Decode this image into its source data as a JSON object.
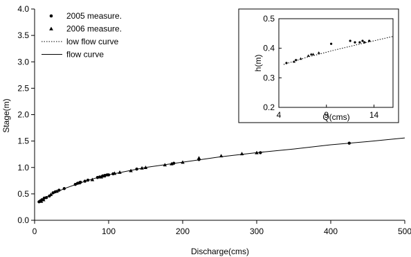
{
  "chart_data": [
    {
      "type": "scatter",
      "xlabel": "Discharge(cms)",
      "ylabel": "Stage(m)",
      "xlim": [
        0,
        500
      ],
      "ylim": [
        0,
        4.0
      ],
      "xticks": [
        "0",
        "100",
        "200",
        "300",
        "400",
        "500"
      ],
      "yticks": [
        "0.0",
        "0.5",
        "1.0",
        "1.5",
        "2.0",
        "2.5",
        "3.0",
        "3.5",
        "4.0"
      ],
      "legend_placement": "top-left",
      "grid": false,
      "series": [
        {
          "name": "2005 measure.",
          "marker": "circle",
          "points": [
            [
              6,
              0.35
            ],
            [
              8,
              0.37
            ],
            [
              10,
              0.39
            ],
            [
              13,
              0.42
            ],
            [
              16,
              0.43
            ],
            [
              20,
              0.46
            ],
            [
              25,
              0.52
            ],
            [
              28,
              0.54
            ],
            [
              33,
              0.57
            ],
            [
              40,
              0.6
            ],
            [
              55,
              0.68
            ],
            [
              58,
              0.7
            ],
            [
              62,
              0.72
            ],
            [
              68,
              0.74
            ],
            [
              72,
              0.76
            ],
            [
              85,
              0.81
            ],
            [
              88,
              0.82
            ],
            [
              92,
              0.84
            ],
            [
              95,
              0.85
            ],
            [
              98,
              0.86
            ],
            [
              100,
              0.86
            ],
            [
              106,
              0.88
            ],
            [
              138,
              0.97
            ],
            [
              188,
              1.08
            ],
            [
              222,
              1.15
            ],
            [
              305,
              1.28
            ],
            [
              425,
              1.46
            ]
          ]
        },
        {
          "name": "2006 measure.",
          "marker": "triangle",
          "points": [
            [
              9,
              0.36
            ],
            [
              12,
              0.39
            ],
            [
              22,
              0.49
            ],
            [
              30,
              0.55
            ],
            [
              60,
              0.71
            ],
            [
              78,
              0.77
            ],
            [
              90,
              0.82
            ],
            [
              94,
              0.84
            ],
            [
              108,
              0.89
            ],
            [
              115,
              0.91
            ],
            [
              130,
              0.94
            ],
            [
              145,
              0.99
            ],
            [
              150,
              1.0
            ],
            [
              176,
              1.05
            ],
            [
              185,
              1.07
            ],
            [
              200,
              1.1
            ],
            [
              222,
              1.18
            ],
            [
              252,
              1.22
            ],
            [
              280,
              1.26
            ],
            [
              300,
              1.28
            ]
          ]
        },
        {
          "name": "low flow curve",
          "style": "dotted",
          "points": []
        },
        {
          "name": "flow curve",
          "style": "solid",
          "points": [
            [
              5,
              0.34
            ],
            [
              10,
              0.39
            ],
            [
              20,
              0.47
            ],
            [
              40,
              0.6
            ],
            [
              60,
              0.7
            ],
            [
              80,
              0.79
            ],
            [
              100,
              0.86
            ],
            [
              150,
              1.0
            ],
            [
              200,
              1.1
            ],
            [
              250,
              1.2
            ],
            [
              300,
              1.28
            ],
            [
              350,
              1.35
            ],
            [
              400,
              1.43
            ],
            [
              450,
              1.49
            ],
            [
              500,
              1.56
            ]
          ]
        }
      ]
    },
    {
      "type": "scatter",
      "xlabel": "Q(cms)",
      "ylabel": "h(m)",
      "xlim": [
        4,
        16
      ],
      "ylim": [
        0.2,
        0.5
      ],
      "xticks": [
        "4",
        "9",
        "14"
      ],
      "yticks": [
        "0.2",
        "0.3",
        "0.4",
        "0.5"
      ],
      "grid": false,
      "series": [
        {
          "name": "2005 measure.",
          "marker": "circle",
          "points": [
            [
              4.8,
              0.35
            ],
            [
              5.8,
              0.36
            ],
            [
              9.5,
              0.415
            ],
            [
              11.5,
              0.425
            ],
            [
              12.0,
              0.42
            ],
            [
              12.5,
              0.42
            ],
            [
              12.8,
              0.425
            ],
            [
              13.0,
              0.42
            ],
            [
              13.5,
              0.425
            ]
          ]
        },
        {
          "name": "2006 measure.",
          "marker": "triangle",
          "points": [
            [
              5.6,
              0.355
            ],
            [
              6.3,
              0.365
            ],
            [
              7.1,
              0.375
            ],
            [
              7.4,
              0.38
            ],
            [
              7.6,
              0.38
            ],
            [
              8.2,
              0.385
            ]
          ]
        },
        {
          "name": "low flow curve",
          "style": "dotted",
          "points": [
            [
              4.5,
              0.345
            ],
            [
              7,
              0.37
            ],
            [
              10,
              0.395
            ],
            [
              13,
              0.418
            ],
            [
              16,
              0.44
            ]
          ]
        }
      ]
    }
  ]
}
